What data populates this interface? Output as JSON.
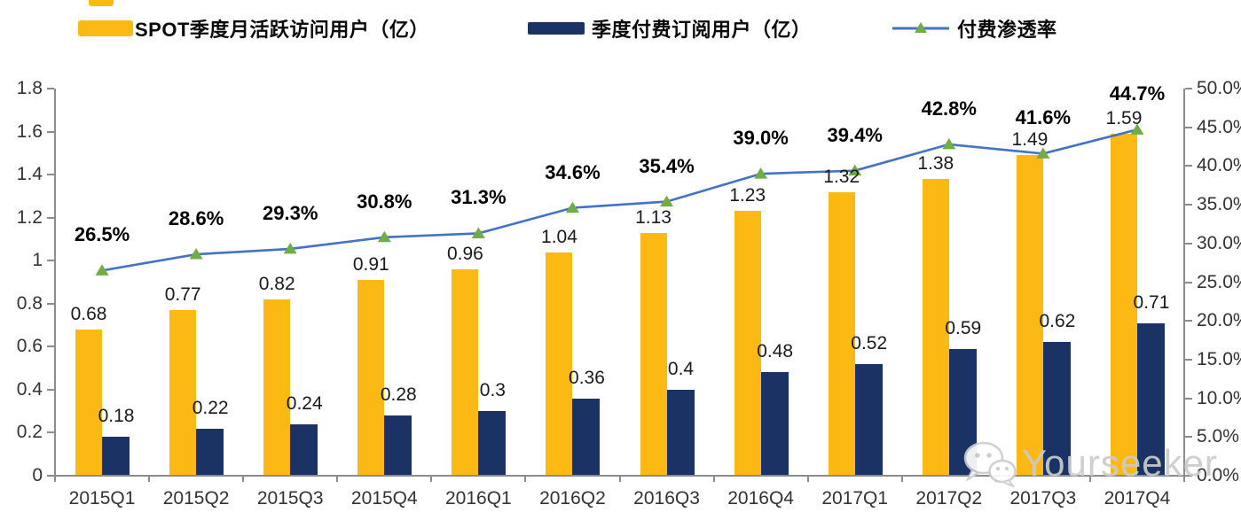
{
  "chart_data": {
    "type": "combo-bar-line",
    "title": "",
    "categories": [
      "2015Q1",
      "2015Q2",
      "2015Q3",
      "2015Q4",
      "2016Q1",
      "2016Q2",
      "2016Q3",
      "2016Q4",
      "2017Q1",
      "2017Q2",
      "2017Q3",
      "2017Q4"
    ],
    "series": [
      {
        "name": "SPOT季度月活跃访问用户（亿）",
        "type": "bar",
        "axis": "left",
        "color": "#FDB913",
        "values": [
          0.68,
          0.77,
          0.82,
          0.91,
          0.96,
          1.04,
          1.13,
          1.23,
          1.32,
          1.38,
          1.49,
          1.59
        ],
        "labels": [
          "0.68",
          "0.77",
          "0.82",
          "0.91",
          "0.96",
          "1.04",
          "1.13",
          "1.23",
          "1.32",
          "1.38",
          "1.49",
          "1.59"
        ]
      },
      {
        "name": "季度付费订阅用户（亿）",
        "type": "bar",
        "axis": "left",
        "color": "#1B3364",
        "values": [
          0.18,
          0.22,
          0.24,
          0.28,
          0.3,
          0.36,
          0.4,
          0.48,
          0.52,
          0.59,
          0.62,
          0.71
        ],
        "labels": [
          "0.18",
          "0.22",
          "0.24",
          "0.28",
          "0.3",
          "0.36",
          "0.4",
          "0.48",
          "0.52",
          "0.59",
          "0.62",
          "0.71"
        ]
      },
      {
        "name": "付费渗透率",
        "type": "line",
        "axis": "right",
        "color": "#4472C4",
        "marker": "triangle",
        "marker_color": "#70AD47",
        "values": [
          26.5,
          28.6,
          29.3,
          30.8,
          31.3,
          34.6,
          35.4,
          39.0,
          39.4,
          42.8,
          41.6,
          44.7
        ],
        "labels": [
          "26.5%",
          "28.6%",
          "29.3%",
          "30.8%",
          "31.3%",
          "34.6%",
          "35.4%",
          "39.0%",
          "39.4%",
          "42.8%",
          "41.6%",
          "44.7%"
        ]
      }
    ],
    "left_axis": {
      "min": 0,
      "max": 1.8,
      "ticks": [
        "0",
        "0.2",
        "0.4",
        "0.6",
        "0.8",
        "1",
        "1.2",
        "1.4",
        "1.6",
        "1.8"
      ]
    },
    "right_axis": {
      "min": 0,
      "max": 50,
      "ticks": [
        "0.0%",
        "5.0%",
        "10.0%",
        "15.0%",
        "20.0%",
        "25.0%",
        "30.0%",
        "35.0%",
        "40.0%",
        "45.0%",
        "50.0%"
      ]
    },
    "grid": false,
    "legend_position": "top",
    "xlabel": "",
    "ylabel": ""
  },
  "colors": {
    "gold": "#FDB913",
    "navy": "#1B3364",
    "line_blue": "#4472C4",
    "marker_green": "#70AD47",
    "axis_gray": "#8C8C8C",
    "watermark_gray": "#CBCBCB"
  },
  "watermark": {
    "icon": "wechat-icon",
    "text": "Yourseeker"
  }
}
